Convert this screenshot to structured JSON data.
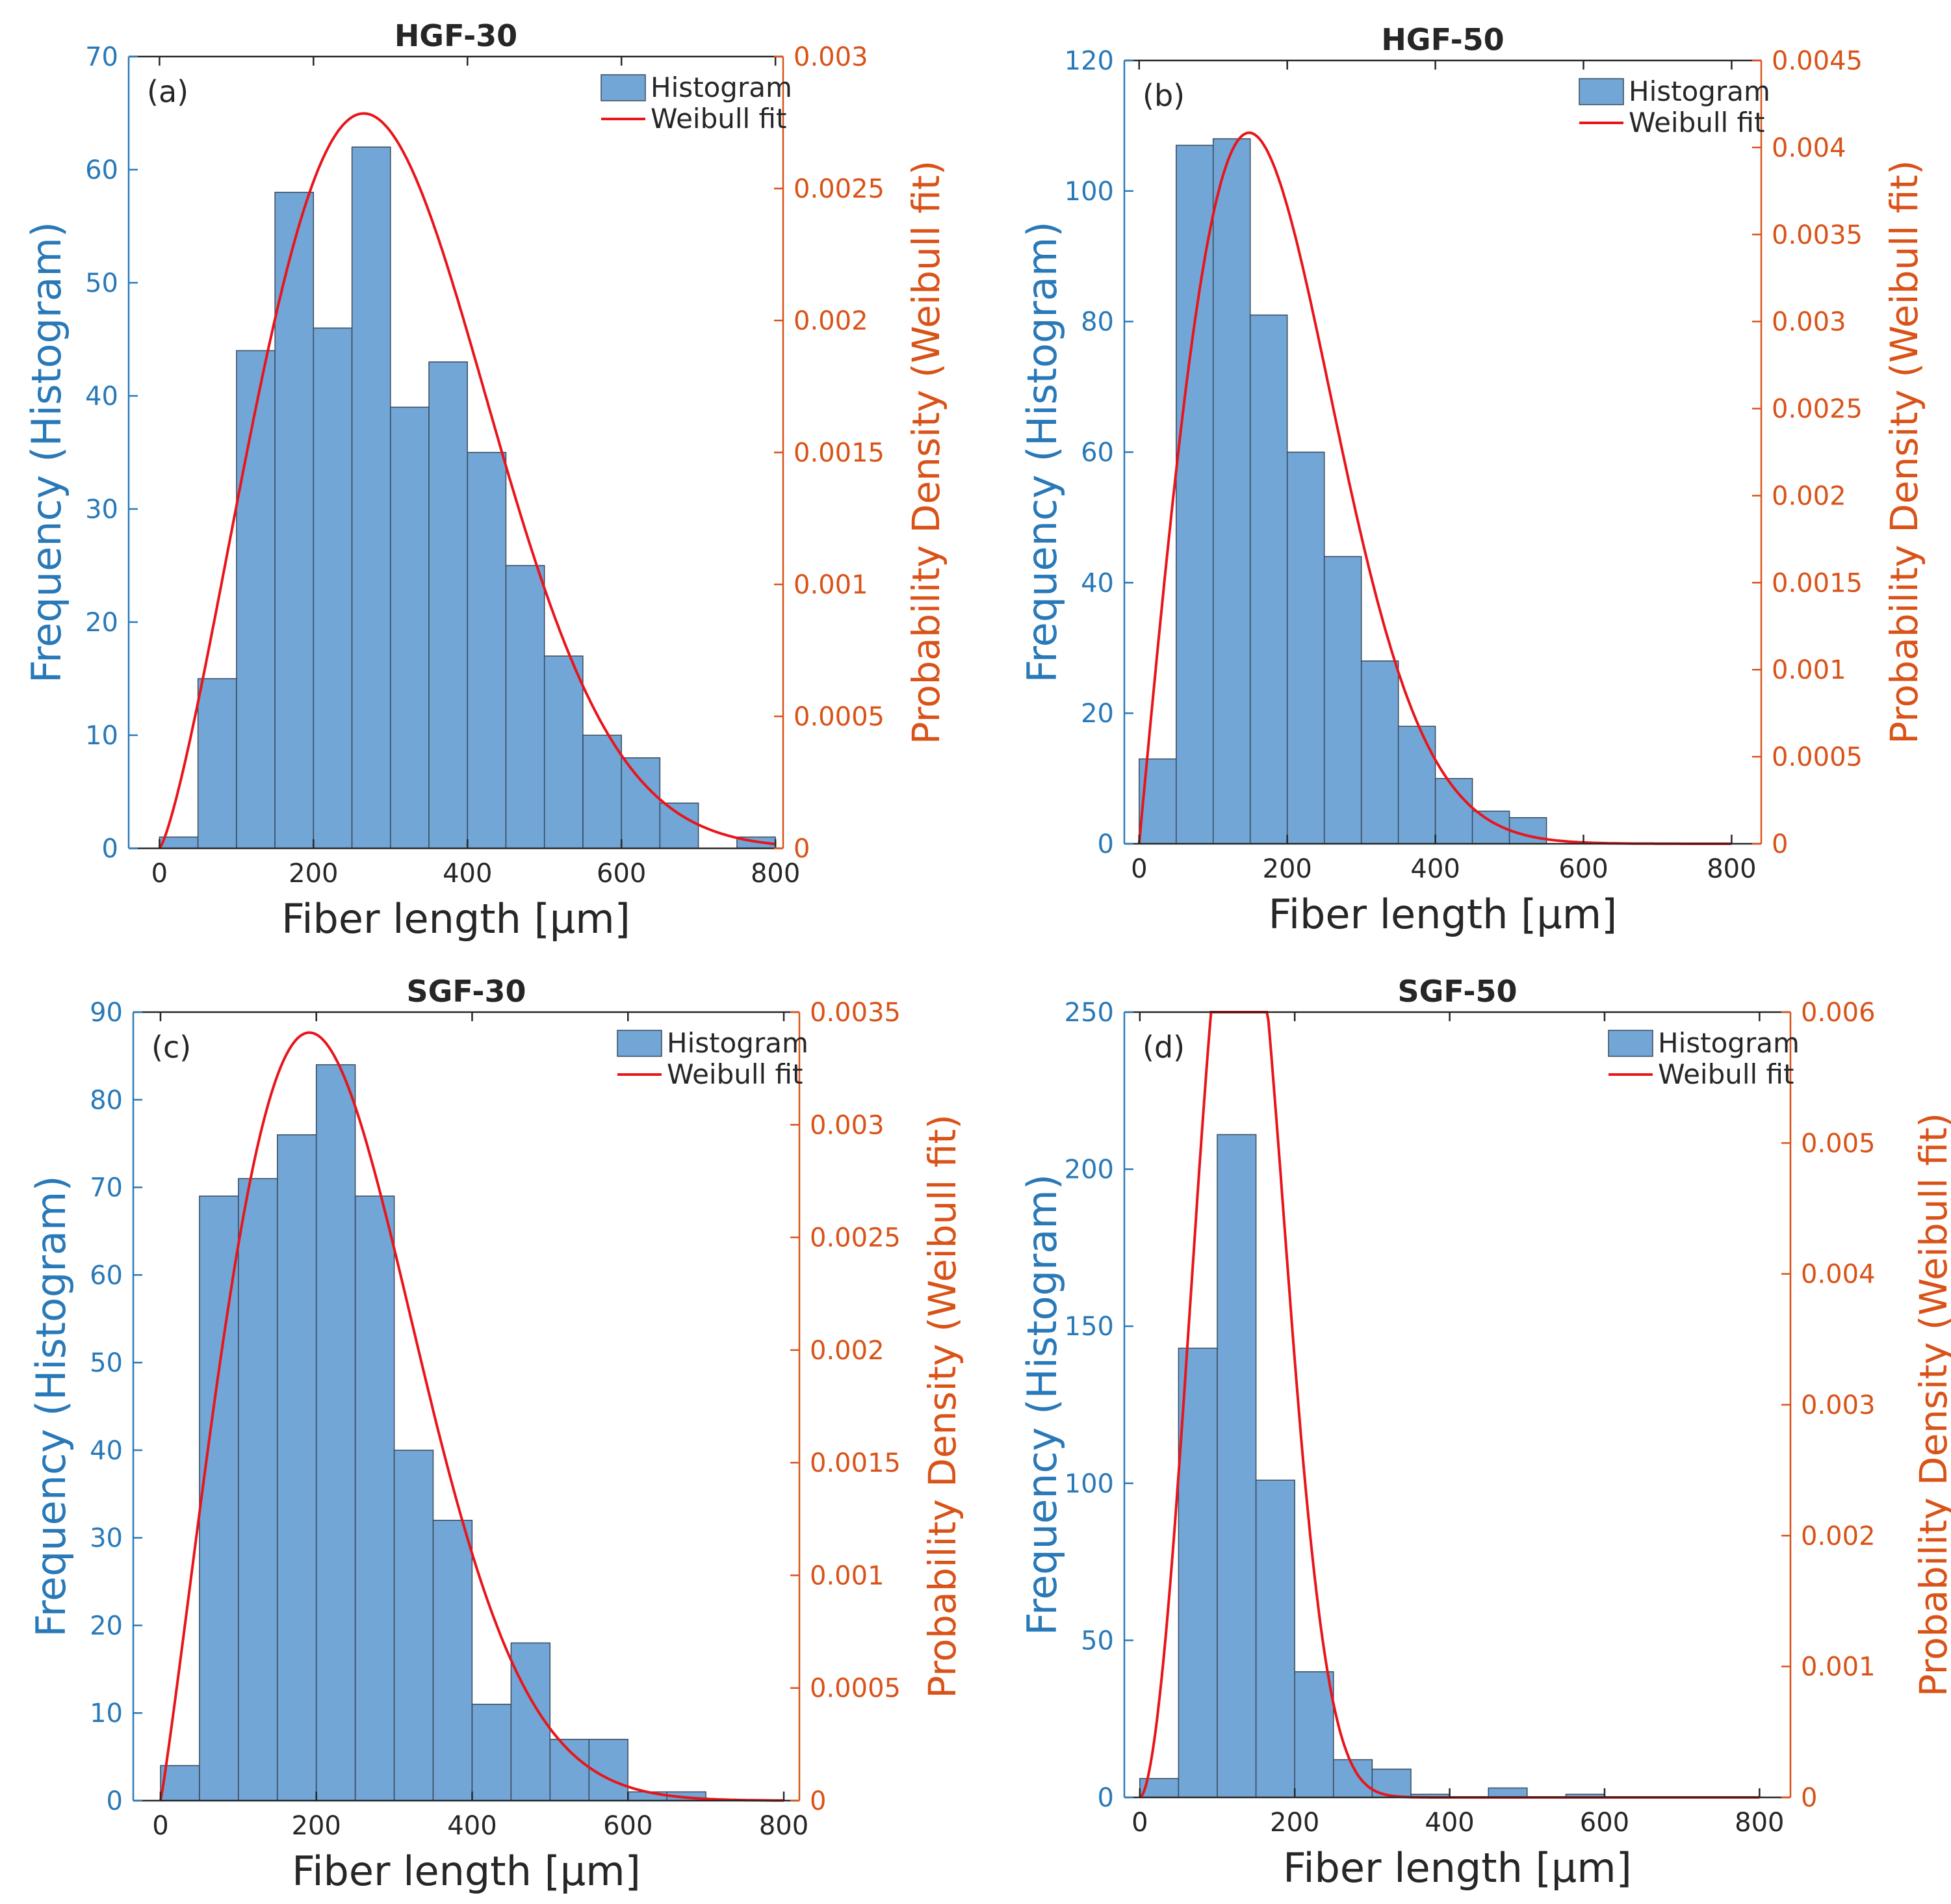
{
  "colors": {
    "bar_fill": "#72a6d6",
    "bar_stroke": "#3a4a5c",
    "fit": "#e8151b",
    "left_axis": "#2979b8",
    "right_axis": "#d95319",
    "text": "#262626"
  },
  "chart_data": [
    {
      "type": "bar",
      "panel": "(a)",
      "title": "HGF-30",
      "xlabel": "Fiber length [µm]",
      "ylabel_left": "Frequency (Histogram)",
      "ylabel_right": "Probability Density (Weibull fit)",
      "legend": [
        "Histogram",
        "Weibull fit"
      ],
      "legend_position": "top-right",
      "xlim": [
        -40,
        810
      ],
      "ylim_left": [
        0,
        70
      ],
      "ylim_right": [
        0,
        0.003
      ],
      "x_ticks": [
        "0",
        "200",
        "400",
        "600",
        "800"
      ],
      "y_ticks_left": [
        "0",
        "10",
        "20",
        "30",
        "40",
        "50",
        "60",
        "70"
      ],
      "y_ticks_right": [
        "0",
        "0.0005",
        "0.001",
        "0.0015",
        "0.002",
        "0.0025",
        "0.003"
      ],
      "bin_width": 50,
      "bin_edges": [
        0,
        50,
        100,
        150,
        200,
        250,
        300,
        350,
        400,
        450,
        500,
        550,
        600,
        650,
        700,
        750
      ],
      "values": [
        1,
        15,
        44,
        58,
        46,
        62,
        39,
        43,
        35,
        25,
        17,
        10,
        8,
        4,
        0,
        1
      ],
      "weibull": {
        "scale": 340,
        "shape": 2.3
      }
    },
    {
      "type": "bar",
      "panel": "(b)",
      "title": "HGF-50",
      "xlabel": "Fiber length [µm]",
      "ylabel_left": "Frequency (Histogram)",
      "ylabel_right": "Probability Density (Weibull fit)",
      "legend": [
        "Histogram",
        "Weibull fit"
      ],
      "legend_position": "top-right",
      "xlim": [
        -20,
        840
      ],
      "ylim_left": [
        0,
        120
      ],
      "ylim_right": [
        0,
        0.0045
      ],
      "x_ticks": [
        "0",
        "200",
        "400",
        "600",
        "800"
      ],
      "y_ticks_left": [
        "0",
        "20",
        "40",
        "60",
        "80",
        "100",
        "120"
      ],
      "y_ticks_right": [
        "0",
        "0.0005",
        "0.001",
        "0.0015",
        "0.002",
        "0.0025",
        "0.003",
        "0.0035",
        "0.004",
        "0.0045"
      ],
      "bin_width": 50,
      "bin_edges": [
        0,
        50,
        100,
        150,
        200,
        250,
        300,
        350,
        400,
        450,
        500
      ],
      "values": [
        13,
        107,
        108,
        81,
        60,
        44,
        28,
        18,
        10,
        5,
        4
      ],
      "weibull": {
        "scale": 210,
        "shape": 2.0
      }
    },
    {
      "type": "bar",
      "panel": "(c)",
      "title": "SGF-30",
      "xlabel": "Fiber length [µm]",
      "ylabel_left": "Frequency (Histogram)",
      "ylabel_right": "Probability Density (Weibull fit)",
      "legend": [
        "Histogram",
        "Weibull fit"
      ],
      "legend_position": "top-right",
      "xlim": [
        -35,
        820
      ],
      "ylim_left": [
        0,
        90
      ],
      "ylim_right": [
        0,
        0.0035
      ],
      "x_ticks": [
        "0",
        "200",
        "400",
        "600",
        "800"
      ],
      "y_ticks_left": [
        "0",
        "10",
        "20",
        "30",
        "40",
        "50",
        "60",
        "70",
        "80",
        "90"
      ],
      "y_ticks_right": [
        "0",
        "0.0005",
        "0.001",
        "0.0015",
        "0.002",
        "0.0025",
        "0.003",
        "0.0035"
      ],
      "bin_width": 50,
      "bin_edges": [
        0,
        50,
        100,
        150,
        200,
        250,
        300,
        350,
        400,
        450,
        500,
        550,
        600,
        650
      ],
      "values": [
        4,
        69,
        71,
        76,
        84,
        69,
        40,
        32,
        11,
        18,
        7,
        7,
        1,
        1
      ],
      "weibull": {
        "scale": 260,
        "shape": 2.1
      }
    },
    {
      "type": "bar",
      "panel": "(d)",
      "title": "SGF-50",
      "xlabel": "Fiber length [µm]",
      "ylabel_left": "Frequency (Histogram)",
      "ylabel_right": "Probability Density (Weibull fit)",
      "legend": [
        "Histogram",
        "Weibull fit"
      ],
      "legend_position": "top-right",
      "xlim": [
        -20,
        840
      ],
      "ylim_left": [
        0,
        250
      ],
      "ylim_right": [
        0,
        0.006
      ],
      "x_ticks": [
        "0",
        "200",
        "400",
        "600",
        "800"
      ],
      "y_ticks_left": [
        "0",
        "50",
        "100",
        "150",
        "200",
        "250"
      ],
      "y_ticks_right": [
        "0",
        "0.001",
        "0.002",
        "0.003",
        "0.004",
        "0.005",
        "0.006"
      ],
      "bin_width": 50,
      "bin_edges": [
        0,
        50,
        100,
        150,
        200,
        250,
        300,
        350,
        400,
        450,
        500,
        550
      ],
      "values": [
        6,
        143,
        211,
        101,
        40,
        12,
        9,
        1,
        0,
        3,
        0,
        1
      ],
      "weibull": {
        "scale": 150,
        "shape": 2.8
      }
    }
  ]
}
